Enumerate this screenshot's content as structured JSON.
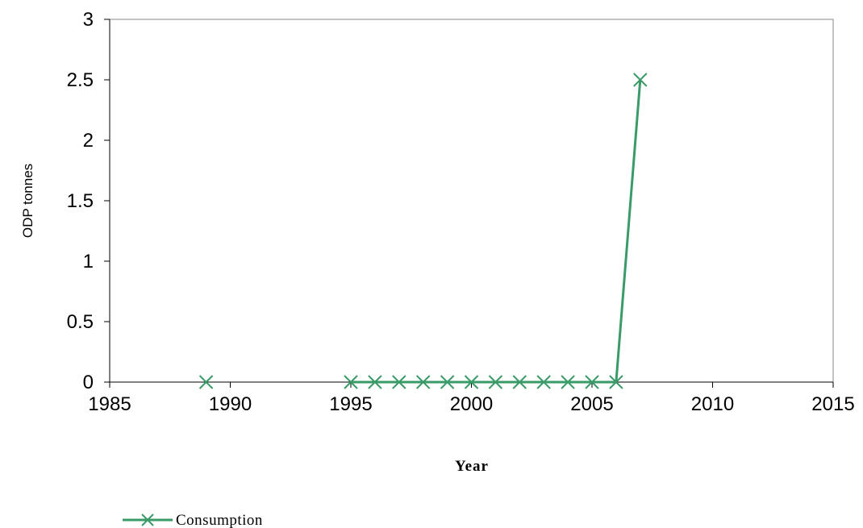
{
  "chart_data": {
    "type": "line",
    "title": "",
    "xlabel": "Year",
    "ylabel": "ODP tonnes",
    "xlim": [
      1985,
      2015
    ],
    "ylim": [
      0,
      3
    ],
    "xticks": [
      1985,
      1990,
      1995,
      2000,
      2005,
      2010,
      2015
    ],
    "yticks": [
      0,
      0.5,
      1,
      1.5,
      2,
      2.5,
      3
    ],
    "xtick_labels": [
      "1985",
      "1990",
      "1995",
      "2000",
      "2005",
      "2010",
      "2015"
    ],
    "ytick_labels": [
      "0",
      "0.5",
      "1",
      "1.5",
      "2",
      "2.5",
      "3"
    ],
    "grid": false,
    "legend": "bottom-left",
    "series": [
      {
        "name": "Consumption",
        "color": "#3a9a68",
        "marker": "x",
        "segments": [
          {
            "x": [
              1989
            ],
            "y": [
              0
            ]
          },
          {
            "x": [
              1995,
              1996,
              1997,
              1998,
              1999,
              2000,
              2001,
              2002,
              2003,
              2004,
              2005,
              2006,
              2007
            ],
            "y": [
              0,
              0,
              0,
              0,
              0,
              0,
              0,
              0,
              0,
              0,
              0,
              0,
              2.5
            ]
          }
        ]
      }
    ]
  }
}
